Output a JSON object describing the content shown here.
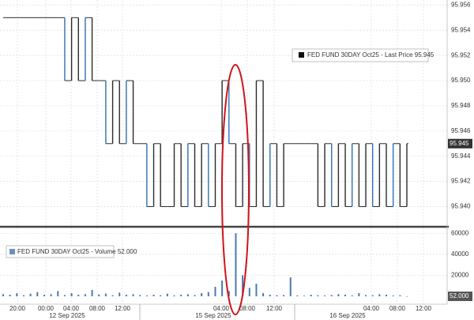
{
  "chart_data": [
    {
      "type": "step",
      "legend": "FED FUND 30DAY Oct25 - Last Price 95.945",
      "last_label": "95.945",
      "color": "#2b2b2b",
      "accent": "#2f6fb0",
      "grid": true,
      "ylim": [
        95.9384,
        95.9564
      ],
      "yticks": [
        {
          "value": 95.94,
          "label": "95.940"
        },
        {
          "value": 95.942,
          "label": "95.942"
        },
        {
          "value": 95.944,
          "label": "95.944"
        },
        {
          "value": 95.946,
          "label": "95.946"
        },
        {
          "value": 95.948,
          "label": "95.948"
        },
        {
          "value": 95.95,
          "label": "95.950"
        },
        {
          "value": 95.952,
          "label": "95.952"
        },
        {
          "value": 95.954,
          "label": "95.954"
        },
        {
          "value": 95.956,
          "label": "95.956"
        }
      ],
      "values": [
        95.955,
        95.955,
        95.955,
        95.955,
        95.955,
        95.955,
        95.955,
        95.955,
        95.955,
        95.95,
        95.955,
        95.95,
        95.955,
        95.95,
        95.95,
        95.945,
        95.95,
        95.945,
        95.95,
        95.945,
        95.945,
        95.94,
        95.945,
        95.94,
        95.94,
        95.945,
        95.94,
        95.945,
        95.94,
        95.945,
        95.94,
        95.945,
        95.95,
        95.945,
        95.94,
        95.945,
        95.94,
        95.95,
        95.94,
        95.945,
        95.94,
        95.945,
        95.945,
        95.945,
        95.945,
        95.945,
        95.94,
        95.945,
        95.94,
        95.945,
        95.94,
        95.945,
        95.94,
        95.945,
        95.94,
        95.945,
        95.94,
        95.945,
        95.94,
        95.945
      ]
    },
    {
      "type": "bar",
      "legend": "FED FUND 30DAY Oct25 - Volume 52.000",
      "last_label": "52.000",
      "color": "#4a78b5",
      "ylim": [
        0,
        64000
      ],
      "yticks": [
        20000,
        40000,
        60000
      ],
      "values": [
        2000,
        1500,
        3000,
        1000,
        2500,
        4000,
        1500,
        2000,
        5000,
        1200,
        3000,
        1500,
        2000,
        6000,
        1800,
        2500,
        1000,
        3500,
        1500,
        2000,
        1200,
        800,
        1500,
        1000,
        2500,
        900,
        1500,
        2000,
        1200,
        3000,
        4000,
        9000,
        15000,
        5000,
        60000,
        20000,
        8000,
        12000,
        3000,
        1500,
        1000,
        1200,
        18000,
        800,
        600,
        1500,
        1000,
        800,
        1200,
        2000,
        1500,
        900,
        3000,
        1200,
        1000,
        2000,
        1500,
        800,
        1000,
        52
      ]
    },
    {
      "type": "axis",
      "xticks": [
        "20:00",
        "00:00",
        "04:00",
        "08:00",
        "12:00",
        "04:00",
        "08:00",
        "12:00",
        "04:00",
        "08:00",
        "12:00"
      ],
      "dates": [
        "12 Sep 2025",
        "15 Sep 2025",
        "16 Sep 2025"
      ]
    }
  ]
}
